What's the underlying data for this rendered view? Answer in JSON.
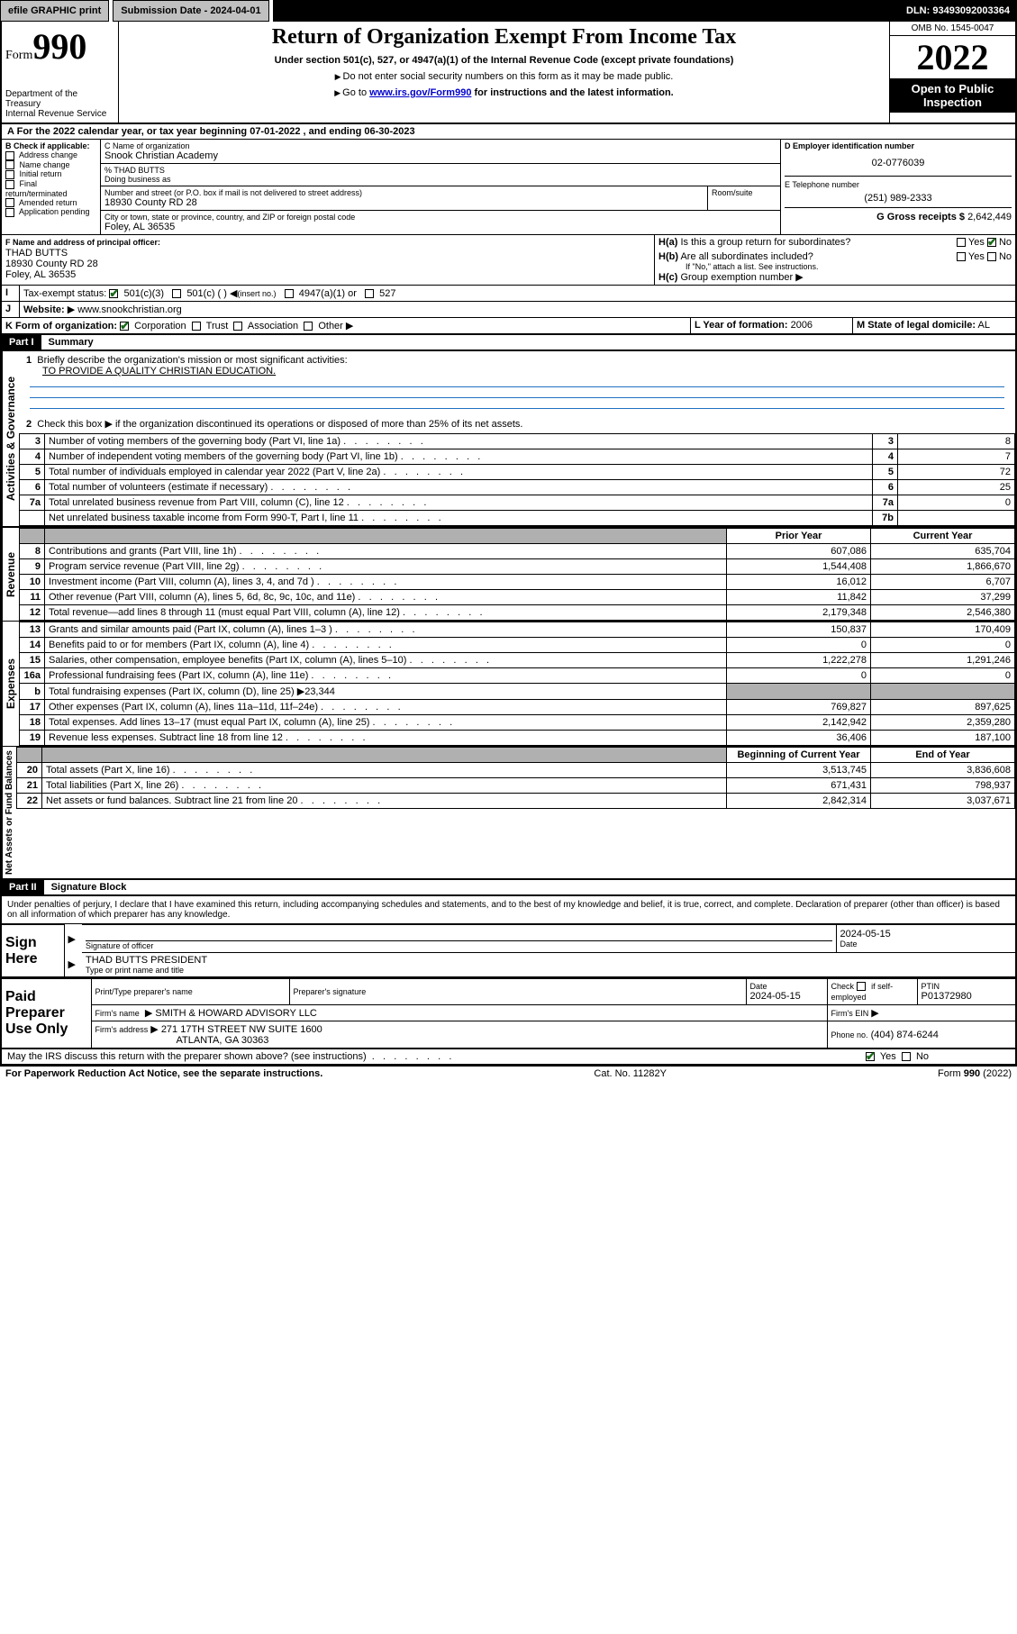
{
  "topbar": {
    "efile": "efile GRAPHIC print",
    "submission_label": "Submission Date - 2024-04-01",
    "dln": "DLN: 93493092003364"
  },
  "header": {
    "form_word": "Form",
    "form_num": "990",
    "dept": "Department of the Treasury",
    "irs": "Internal Revenue Service",
    "title": "Return of Organization Exempt From Income Tax",
    "sub": "Under section 501(c), 527, or 4947(a)(1) of the Internal Revenue Code (except private foundations)",
    "note1": "Do not enter social security numbers on this form as it may be made public.",
    "note2_pre": "Go to ",
    "note2_link": "www.irs.gov/Form990",
    "note2_post": " for instructions and the latest information.",
    "omb": "OMB No. 1545-0047",
    "year": "2022",
    "open1": "Open to Public",
    "open2": "Inspection"
  },
  "A": {
    "line": "For the 2022 calendar year, or tax year beginning 07-01-2022   , and ending 06-30-2023"
  },
  "B": {
    "label": "B Check if applicable:",
    "items": [
      "Address change",
      "Name change",
      "Initial return",
      "Final return/terminated",
      "Amended return",
      "Application pending"
    ]
  },
  "C": {
    "name_label": "C Name of organization",
    "name": "Snook Christian Academy",
    "care_label": "% THAD BUTTS",
    "dba_label": "Doing business as",
    "street_label": "Number and street (or P.O. box if mail is not delivered to street address)",
    "room_label": "Room/suite",
    "street": "18930 County RD 28",
    "city_label": "City or town, state or province, country, and ZIP or foreign postal code",
    "city": "Foley, AL  36535"
  },
  "D": {
    "label": "D Employer identification number",
    "value": "02-0776039"
  },
  "E": {
    "label": "E Telephone number",
    "value": "(251) 989-2333"
  },
  "G": {
    "label": "G Gross receipts $",
    "value": "2,642,449"
  },
  "F": {
    "label": "F  Name and address of principal officer:",
    "name": "THAD BUTTS",
    "street": "18930 County RD 28",
    "city": "Foley, AL  36535"
  },
  "H": {
    "a": "Is this a group return for subordinates?",
    "b": "Are all subordinates included?",
    "bnote": "If \"No,\" attach a list. See instructions.",
    "c": "Group exemption number",
    "yes": "Yes",
    "no": "No"
  },
  "I": {
    "label": "Tax-exempt status:",
    "opt1": "501(c)(3)",
    "opt2": "501(c) (  )",
    "opt2b": "(insert no.)",
    "opt3": "4947(a)(1) or",
    "opt4": "527"
  },
  "J": {
    "label": "Website:",
    "value": "www.snookchristian.org"
  },
  "K": {
    "label": "K Form of organization:",
    "opts": [
      "Corporation",
      "Trust",
      "Association",
      "Other"
    ]
  },
  "L": {
    "label": "L Year of formation:",
    "value": "2006"
  },
  "M": {
    "label": "M State of legal domicile:",
    "value": "AL"
  },
  "part1": {
    "bar": "Part I",
    "title": "Summary",
    "q1": "Briefly describe the organization's mission or most significant activities:",
    "q1v": "TO PROVIDE A QUALITY CHRISTIAN EDUCATION.",
    "q2": "Check this box ▶      if the organization discontinued its operations or disposed of more than 25% of its net assets.",
    "lines_ag": [
      {
        "n": "3",
        "d": "Number of voting members of the governing body (Part VI, line 1a)",
        "v": "8"
      },
      {
        "n": "4",
        "d": "Number of independent voting members of the governing body (Part VI, line 1b)",
        "v": "7"
      },
      {
        "n": "5",
        "d": "Total number of individuals employed in calendar year 2022 (Part V, line 2a)",
        "v": "72"
      },
      {
        "n": "6",
        "d": "Total number of volunteers (estimate if necessary)",
        "v": "25"
      },
      {
        "n": "7a",
        "d": "Total unrelated business revenue from Part VIII, column (C), line 12",
        "v": "0"
      },
      {
        "n": "",
        "d": "Net unrelated business taxable income from Form 990-T, Part I, line 11",
        "n2": "7b",
        "v": ""
      }
    ],
    "col_prior": "Prior Year",
    "col_curr": "Current Year",
    "rev": [
      {
        "n": "8",
        "d": "Contributions and grants (Part VIII, line 1h)",
        "p": "607,086",
        "c": "635,704"
      },
      {
        "n": "9",
        "d": "Program service revenue (Part VIII, line 2g)",
        "p": "1,544,408",
        "c": "1,866,670"
      },
      {
        "n": "10",
        "d": "Investment income (Part VIII, column (A), lines 3, 4, and 7d )",
        "p": "16,012",
        "c": "6,707"
      },
      {
        "n": "11",
        "d": "Other revenue (Part VIII, column (A), lines 5, 6d, 8c, 9c, 10c, and 11e)",
        "p": "11,842",
        "c": "37,299"
      },
      {
        "n": "12",
        "d": "Total revenue—add lines 8 through 11 (must equal Part VIII, column (A), line 12)",
        "p": "2,179,348",
        "c": "2,546,380"
      }
    ],
    "exp": [
      {
        "n": "13",
        "d": "Grants and similar amounts paid (Part IX, column (A), lines 1–3 )",
        "p": "150,837",
        "c": "170,409"
      },
      {
        "n": "14",
        "d": "Benefits paid to or for members (Part IX, column (A), line 4)",
        "p": "0",
        "c": "0"
      },
      {
        "n": "15",
        "d": "Salaries, other compensation, employee benefits (Part IX, column (A), lines 5–10)",
        "p": "1,222,278",
        "c": "1,291,246"
      },
      {
        "n": "16a",
        "d": "Professional fundraising fees (Part IX, column (A), line 11e)",
        "p": "0",
        "c": "0"
      },
      {
        "n": "b",
        "d": "Total fundraising expenses (Part IX, column (D), line 25) ▶23,344",
        "p": "",
        "c": "",
        "grey": true
      },
      {
        "n": "17",
        "d": "Other expenses (Part IX, column (A), lines 11a–11d, 11f–24e)",
        "p": "769,827",
        "c": "897,625"
      },
      {
        "n": "18",
        "d": "Total expenses. Add lines 13–17 (must equal Part IX, column (A), line 25)",
        "p": "2,142,942",
        "c": "2,359,280"
      },
      {
        "n": "19",
        "d": "Revenue less expenses. Subtract line 18 from line 12",
        "p": "36,406",
        "c": "187,100"
      }
    ],
    "col_boy": "Beginning of Current Year",
    "col_eoy": "End of Year",
    "na": [
      {
        "n": "20",
        "d": "Total assets (Part X, line 16)",
        "p": "3,513,745",
        "c": "3,836,608"
      },
      {
        "n": "21",
        "d": "Total liabilities (Part X, line 26)",
        "p": "671,431",
        "c": "798,937"
      },
      {
        "n": "22",
        "d": "Net assets or fund balances. Subtract line 21 from line 20",
        "p": "2,842,314",
        "c": "3,037,671"
      }
    ],
    "side_ag": "Activities & Governance",
    "side_rev": "Revenue",
    "side_exp": "Expenses",
    "side_na": "Net Assets or Fund Balances"
  },
  "part2": {
    "bar": "Part II",
    "title": "Signature Block",
    "decl": "Under penalties of perjury, I declare that I have examined this return, including accompanying schedules and statements, and to the best of my knowledge and belief, it is true, correct, and complete. Declaration of preparer (other than officer) is based on all information of which preparer has any knowledge."
  },
  "sign": {
    "here": "Sign Here",
    "sigoff": "Signature of officer",
    "date": "Date",
    "datev": "2024-05-15",
    "name": "THAD BUTTS  PRESIDENT",
    "name_label": "Type or print name and title"
  },
  "paid": {
    "label": "Paid Preparer Use Only",
    "c1": "Print/Type preparer's name",
    "c2": "Preparer's signature",
    "c3": "Date",
    "c3v": "2024-05-15",
    "c4a": "Check",
    "c4b": "if self-employed",
    "c5": "PTIN",
    "c5v": "P01372980",
    "firm_label": "Firm's name",
    "firm": "SMITH & HOWARD ADVISORY LLC",
    "ein_label": "Firm's EIN",
    "addr_label": "Firm's address",
    "addr1": "271 17TH STREET NW SUITE 1600",
    "addr2": "ATLANTA, GA  30363",
    "phone_label": "Phone no.",
    "phone": "(404) 874-6244"
  },
  "footer_q": "May the IRS discuss this return with the preparer shown above? (see instructions)",
  "footer": {
    "l": "For Paperwork Reduction Act Notice, see the separate instructions.",
    "m": "Cat. No. 11282Y",
    "r": "Form 990 (2022)"
  }
}
